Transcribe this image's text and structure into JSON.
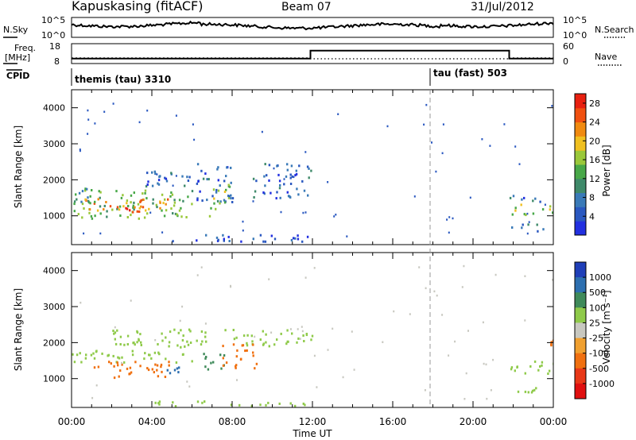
{
  "header": {
    "site": "Kapuskasing (fitACF)",
    "beam": "Beam 07",
    "date": "31/Jul/2012"
  },
  "top_panels": {
    "nsky_label": "N.Sky",
    "nsky_ticks": [
      "10^5",
      "10^0"
    ],
    "nsearch_label": "N.Search",
    "nsearch_ticks": [
      "10^5",
      "10^0"
    ],
    "freq_label": "Freq.",
    "freq_unit": "[MHz]",
    "freq_ticks": [
      "18",
      "8"
    ],
    "nave_label": "Nave",
    "nave_ticks": [
      "60",
      "0"
    ],
    "cpid_label": "CPID",
    "cpid_segments": [
      {
        "name": "themis (tau) 3310",
        "start": "00:00"
      },
      {
        "name": "tau (fast) 503",
        "start": "18:00"
      }
    ]
  },
  "chart_data": [
    {
      "type": "heatmap",
      "title": "",
      "quantity": "Power",
      "xlabel": "",
      "ylabel": "Slant Range [km]",
      "x_ticks": [
        "00:00",
        "04:00",
        "08:00",
        "12:00",
        "16:00",
        "20:00",
        "00:00"
      ],
      "y_ticks": [
        "1000",
        "2000",
        "3000",
        "4000"
      ],
      "xlim_hours": [
        0,
        24
      ],
      "ylim_km": [
        200,
        4500
      ],
      "colorbar": {
        "label": "Power [dB]",
        "ticks": [
          "4",
          "8",
          "12",
          "16",
          "20",
          "24",
          "28"
        ],
        "range": [
          0,
          30
        ],
        "colors": [
          "#2230e0",
          "#2a58c0",
          "#3a7ab8",
          "#3f8a6a",
          "#48a848",
          "#9ac83a",
          "#f0c020",
          "#f08a10",
          "#f05010",
          "#e82010"
        ]
      },
      "regions": [
        {
          "t": [
            0.0,
            6.2
          ],
          "r": [
            950,
            1750
          ],
          "value": 14
        },
        {
          "t": [
            0.6,
            4.8
          ],
          "r": [
            1100,
            1500
          ],
          "value": 22
        },
        {
          "t": [
            2.6,
            3.8
          ],
          "r": [
            1000,
            1350
          ],
          "value": 28
        },
        {
          "t": [
            0.0,
            1.2
          ],
          "r": [
            1300,
            1800
          ],
          "value": 10
        },
        {
          "t": [
            6.2,
            8.2
          ],
          "r": [
            1400,
            2500
          ],
          "value": 6
        },
        {
          "t": [
            6.8,
            7.4
          ],
          "r": [
            1000,
            1800
          ],
          "value": 18
        },
        {
          "t": [
            7.5,
            8.0
          ],
          "r": [
            1300,
            1900
          ],
          "value": 16
        },
        {
          "t": [
            9.0,
            11.9
          ],
          "r": [
            1500,
            2500
          ],
          "value": 6
        },
        {
          "t": [
            3.0,
            6.0
          ],
          "r": [
            1850,
            2300
          ],
          "value": 6
        },
        {
          "t": [
            4.5,
            12.0
          ],
          "r": [
            300,
            500
          ],
          "value": 4
        },
        {
          "t": [
            21.8,
            24.0
          ],
          "r": [
            1050,
            1350
          ],
          "value": 16
        },
        {
          "t": [
            21.8,
            24.0
          ],
          "r": [
            600,
            800
          ],
          "value": 8
        },
        {
          "t": [
            21.8,
            24.0
          ],
          "r": [
            1400,
            1600
          ],
          "value": 6
        }
      ]
    },
    {
      "type": "heatmap",
      "title": "",
      "quantity": "Velocity",
      "xlabel": "Time UT",
      "ylabel": "Slant Range [km]",
      "x_ticks": [
        "00:00",
        "04:00",
        "08:00",
        "12:00",
        "16:00",
        "20:00",
        "00:00"
      ],
      "y_ticks": [
        "1000",
        "2000",
        "3000",
        "4000"
      ],
      "xlim_hours": [
        0,
        24
      ],
      "ylim_km": [
        200,
        4500
      ],
      "colorbar": {
        "label": "Velocity [m s⁻¹]",
        "ticks": [
          "1000",
          "500",
          "100",
          "25",
          "-25",
          "-100",
          "-500",
          "-1000"
        ],
        "colors": [
          "#1f3fb8",
          "#2d6fb0",
          "#3f8a5a",
          "#8fca4a",
          "#c8c8c0",
          "#f0a030",
          "#f07010",
          "#e83818",
          "#e01010"
        ]
      },
      "regions": [
        {
          "t": [
            0.0,
            6.2
          ],
          "r": [
            1450,
            1800
          ],
          "value": 25
        },
        {
          "t": [
            1.0,
            5.2
          ],
          "r": [
            1050,
            1500
          ],
          "value": -500
        },
        {
          "t": [
            4.5,
            5.4
          ],
          "r": [
            1100,
            1400
          ],
          "value": 500
        },
        {
          "t": [
            2.0,
            12.0
          ],
          "r": [
            1900,
            2400
          ],
          "value": 25
        },
        {
          "t": [
            6.5,
            7.6
          ],
          "r": [
            1200,
            1800
          ],
          "value": 100
        },
        {
          "t": [
            7.5,
            9.3
          ],
          "r": [
            1300,
            2000
          ],
          "value": -500
        },
        {
          "t": [
            4.0,
            12.0
          ],
          "r": [
            250,
            400
          ],
          "value": 25
        },
        {
          "t": [
            21.8,
            24.0
          ],
          "r": [
            1150,
            1550
          ],
          "value": 25
        },
        {
          "t": [
            21.8,
            24.0
          ],
          "r": [
            650,
            850
          ],
          "value": 25
        },
        {
          "t": [
            23.8,
            24.0
          ],
          "r": [
            1900,
            2100
          ],
          "value": -500
        }
      ]
    }
  ],
  "xaxis_label": "Time UT",
  "x_ticks_top": [
    "00:00",
    "04:00",
    "08:00",
    "12:00",
    "16:00",
    "20:00",
    "00:00"
  ],
  "freq_series": {
    "segments": [
      {
        "t": [
          0,
          11.9
        ],
        "mhz": 10.5
      },
      {
        "t": [
          11.9,
          21.8
        ],
        "mhz": 14.5
      },
      {
        "t": [
          21.8,
          24
        ],
        "mhz": 10.5
      }
    ]
  }
}
